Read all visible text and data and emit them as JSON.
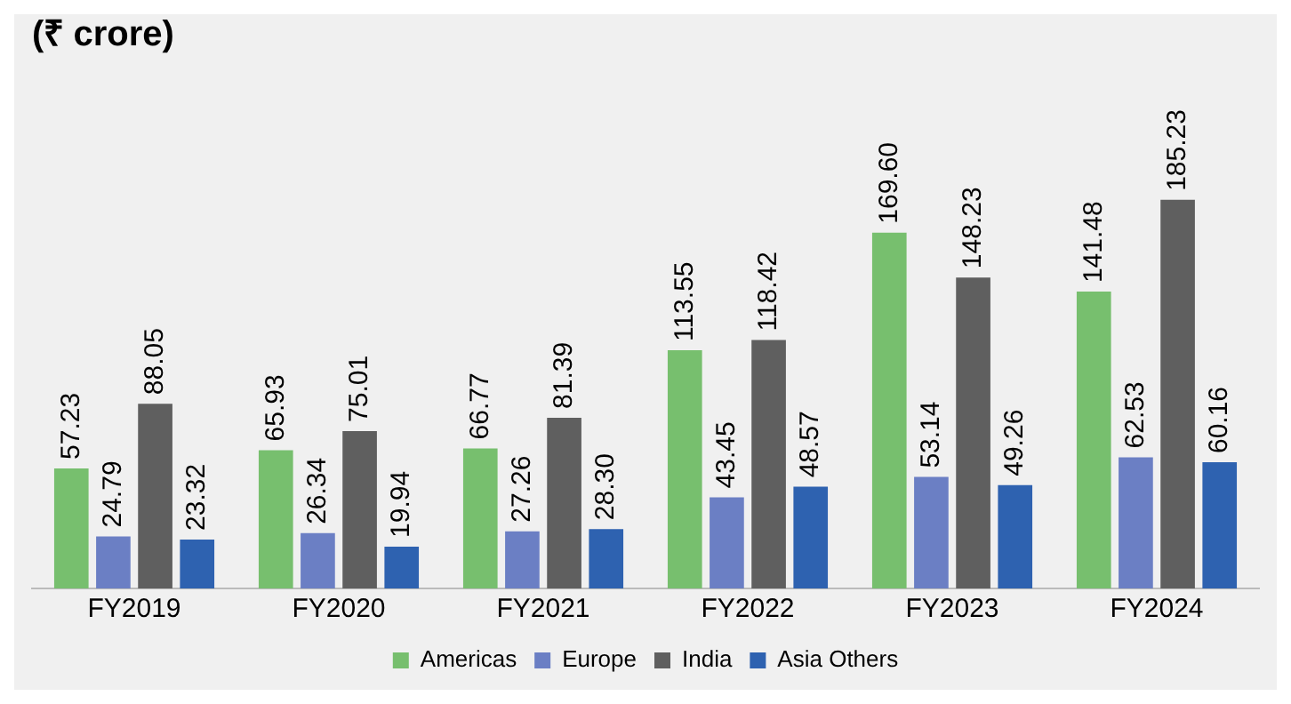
{
  "chart_data": {
    "type": "bar",
    "title": "(₹ crore)",
    "categories": [
      "FY2019",
      "FY2020",
      "FY2021",
      "FY2022",
      "FY2023",
      "FY2024"
    ],
    "series": [
      {
        "name": "Americas",
        "color": "#77bf6e",
        "values": [
          57.23,
          65.93,
          66.77,
          113.55,
          169.6,
          141.48
        ],
        "value_labels": [
          "57.23",
          "65.93",
          "66.77",
          "113.55",
          "169.60",
          "141.48"
        ]
      },
      {
        "name": "Europe",
        "color": "#6b7fc4",
        "values": [
          24.79,
          26.34,
          27.26,
          43.45,
          53.14,
          62.53
        ],
        "value_labels": [
          "24.79",
          "26.34",
          "27.26",
          "43.45",
          "53.14",
          "62.53"
        ]
      },
      {
        "name": "India",
        "color": "#5f5f5f",
        "values": [
          88.05,
          75.01,
          81.39,
          118.42,
          148.23,
          185.23
        ],
        "value_labels": [
          "88.05",
          "75.01",
          "81.39",
          "118.42",
          "148.23",
          "185.23"
        ]
      },
      {
        "name": "Asia Others",
        "color": "#2e62b0",
        "values": [
          23.32,
          19.94,
          28.3,
          48.57,
          49.26,
          60.16
        ],
        "value_labels": [
          "23.32",
          "19.94",
          "28.30",
          "48.57",
          "49.26",
          "60.16"
        ]
      }
    ],
    "legend": "bottom",
    "grid": false
  }
}
